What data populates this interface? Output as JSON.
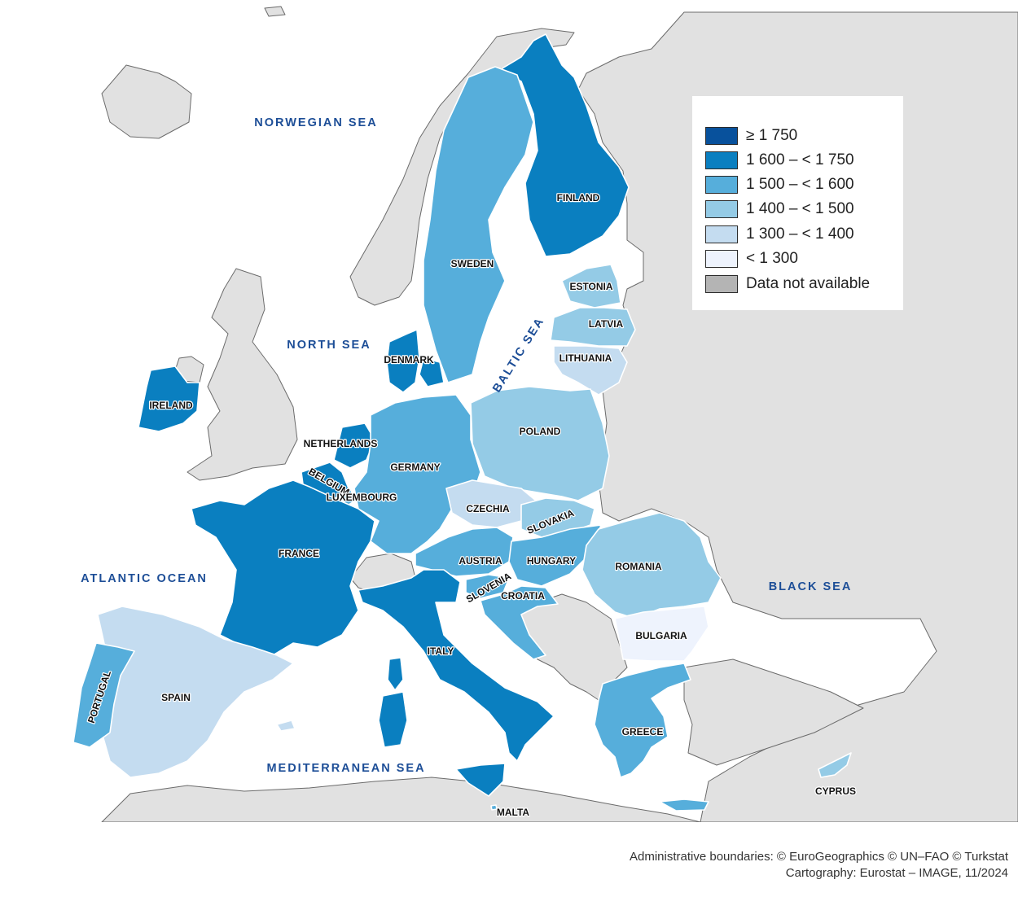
{
  "map": {
    "legend": [
      {
        "label": "≥ 1 750",
        "color": "#08519c"
      },
      {
        "label": "1 600 – < 1 750",
        "color": "#0a7fc0"
      },
      {
        "label": "1 500 – < 1 600",
        "color": "#56aedb"
      },
      {
        "label": "1 400 – < 1 500",
        "color": "#94cbe6"
      },
      {
        "label": "1 300 – < 1 400",
        "color": "#c4dcf0"
      },
      {
        "label": "< 1 300",
        "color": "#eef3fd"
      },
      {
        "label": "Data not available",
        "color": "#b4b4b4"
      }
    ],
    "sea_labels": {
      "norwegian_sea": "NORWEGIAN SEA",
      "north_sea": "NORTH SEA",
      "baltic_sea": "BALTIC SEA",
      "atlantic_ocean": "ATLANTIC OCEAN",
      "black_sea": "BLACK SEA",
      "mediterranean_sea": "MEDITERRANEAN SEA"
    },
    "countries": {
      "finland": {
        "name": "FINLAND",
        "class": "1 600 – < 1 750"
      },
      "sweden": {
        "name": "SWEDEN",
        "class": "1 500 – < 1 600"
      },
      "estonia": {
        "name": "ESTONIA",
        "class": "1 400 – < 1 500"
      },
      "latvia": {
        "name": "LATVIA",
        "class": "1 400 – < 1 500"
      },
      "lithuania": {
        "name": "LITHUANIA",
        "class": "1 300 – < 1 400"
      },
      "denmark": {
        "name": "DENMARK",
        "class": "1 600 – < 1 750"
      },
      "ireland": {
        "name": "IRELAND",
        "class": "1 600 – < 1 750"
      },
      "netherlands": {
        "name": "NETHERLANDS",
        "class": "1 600 – < 1 750"
      },
      "belgium": {
        "name": "BELGIUM",
        "class": "1 600 – < 1 750"
      },
      "luxembourg": {
        "name": "LUXEMBOURG",
        "class": "1 500 – < 1 600"
      },
      "germany": {
        "name": "GERMANY",
        "class": "1 500 – < 1 600"
      },
      "poland": {
        "name": "POLAND",
        "class": "1 400 – < 1 500"
      },
      "czechia": {
        "name": "CZECHIA",
        "class": "1 300 – < 1 400"
      },
      "slovakia": {
        "name": "SLOVAKIA",
        "class": "1 400 – < 1 500"
      },
      "austria": {
        "name": "AUSTRIA",
        "class": "1 500 – < 1 600"
      },
      "hungary": {
        "name": "HUNGARY",
        "class": "1 500 – < 1 600"
      },
      "slovenia": {
        "name": "SLOVENIA",
        "class": "1 500 – < 1 600"
      },
      "croatia": {
        "name": "CROATIA",
        "class": "1 500 – < 1 600"
      },
      "romania": {
        "name": "ROMANIA",
        "class": "1 400 – < 1 500"
      },
      "bulgaria": {
        "name": "BULGARIA",
        "class": "< 1 300"
      },
      "france": {
        "name": "FRANCE",
        "class": "1 600 – < 1 750"
      },
      "italy": {
        "name": "ITALY",
        "class": "1 600 – < 1 750"
      },
      "spain": {
        "name": "SPAIN",
        "class": "1 300 – < 1 400"
      },
      "portugal": {
        "name": "PORTUGAL",
        "class": "1 500 – < 1 600"
      },
      "greece": {
        "name": "GREECE",
        "class": "1 500 – < 1 600"
      },
      "malta": {
        "name": "MALTA",
        "class": "1 500 – < 1 600"
      },
      "cyprus": {
        "name": "CYPRUS",
        "class": "1 400 – < 1 500"
      }
    },
    "colors": {
      "sea": "#ffffff",
      "non_member_land": "#e1e1e1",
      "sea_label": "#1d4e97"
    }
  },
  "credits": {
    "line1": "Administrative boundaries: © EuroGeographics © UN–FAO © Turkstat",
    "line2": "Cartography: Eurostat – IMAGE, 11/2024"
  }
}
